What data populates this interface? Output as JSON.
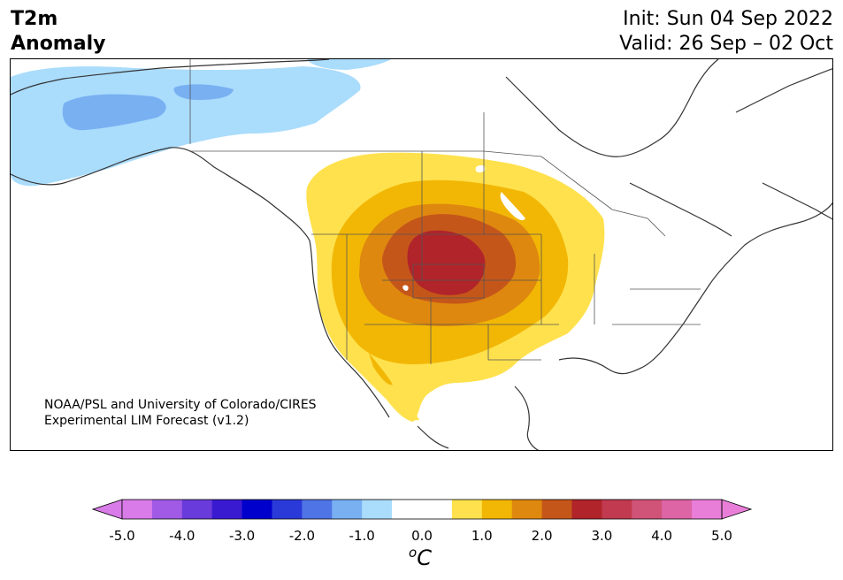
{
  "header": {
    "variable": "T2m",
    "subtitle": "Anomaly",
    "init": "Init: Sun 04 Sep 2022",
    "valid": "Valid: 26 Sep – 02 Oct"
  },
  "credit": {
    "line1": "NOAA/PSL and University of Colorado/CIRES",
    "line2": "Experimental LIM Forecast (v1.2)"
  },
  "colorbar": {
    "unit_symbol": "C",
    "unit_superscript": "o",
    "ticks": [
      "-5.0",
      "-4.0",
      "-3.0",
      "-2.0",
      "-1.0",
      "0.0",
      "1.0",
      "2.0",
      "3.0",
      "4.0",
      "5.0"
    ],
    "colors": [
      "#d97be8",
      "#a05ae6",
      "#6a3bdb",
      "#3a1ad0",
      "#0000cd",
      "#2a3ad8",
      "#4f74e6",
      "#78b0f2",
      "#aadcfc",
      "#ffffff",
      "#ffffff",
      "#ffe14d",
      "#f2b705",
      "#de880f",
      "#c5561a",
      "#b0242a",
      "#c23a50",
      "#d05378",
      "#dd65a6",
      "#e97ed8"
    ],
    "over_color": "#e97ed8",
    "under_color": "#d97be8"
  },
  "map": {
    "anomaly_colors": {
      "cold_light": "#aadcfc",
      "cold_mid": "#78b0f2",
      "warm_1": "#ffe14d",
      "warm_2": "#f2b705",
      "warm_3": "#de880f",
      "warm_4": "#c5561a",
      "warm_5": "#b0242a"
    },
    "region": "North America",
    "coastline_color": "#333333"
  }
}
